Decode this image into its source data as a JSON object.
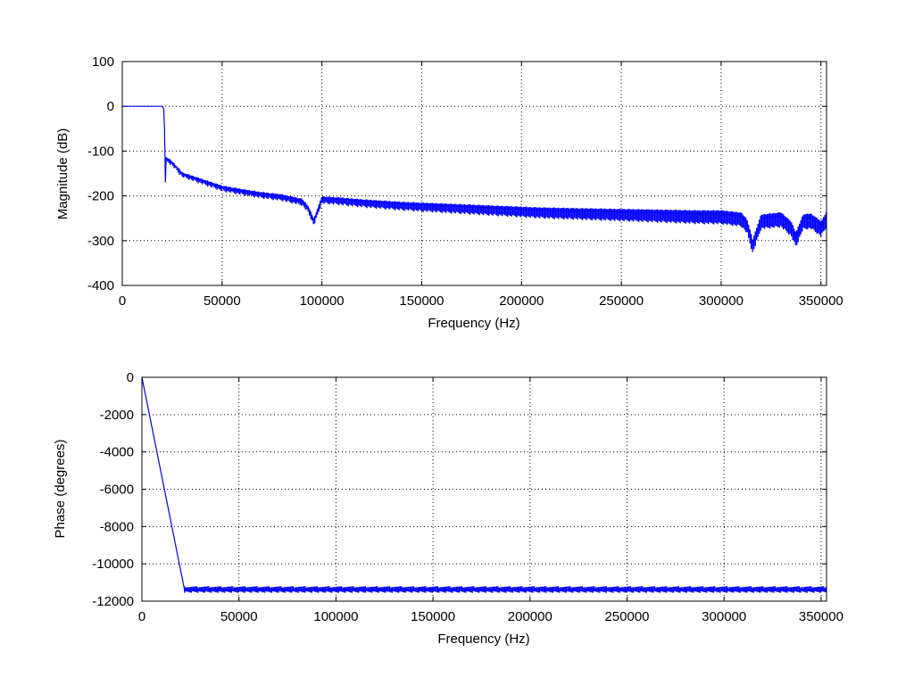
{
  "chart_data": [
    {
      "type": "line",
      "xlabel": "Frequency (Hz)",
      "ylabel": "Magnitude (dB)",
      "xlim": [
        0,
        352800
      ],
      "ylim": [
        -400,
        100
      ],
      "xticks": [
        0,
        50000,
        100000,
        150000,
        200000,
        250000,
        300000,
        350000
      ],
      "yticks": [
        100,
        0,
        -100,
        -200,
        -300,
        -400
      ],
      "grid": true,
      "line_color": "#0000ff",
      "series": [
        {
          "x": [
            0,
            20000,
            20800,
            21200,
            21600,
            22000,
            25000,
            30000,
            40000,
            50000,
            60000,
            70000,
            80000,
            90000,
            93000,
            96000,
            100000,
            110000,
            120000,
            130000,
            140000,
            150000,
            160000,
            170000,
            180000,
            190000,
            200000,
            210000,
            220000,
            230000,
            240000,
            250000,
            260000,
            270000,
            280000,
            290000,
            300000,
            310000,
            313000,
            315800,
            320000,
            330000,
            335000,
            337500,
            341000,
            345000,
            350000,
            352800
          ],
          "y": [
            0,
            0,
            -5,
            -60,
            -170,
            -115,
            -125,
            -150,
            -165,
            -180,
            -188,
            -195,
            -200,
            -210,
            -225,
            -255,
            -205,
            -208,
            -212,
            -215,
            -218,
            -220,
            -222,
            -224,
            -226,
            -228,
            -230,
            -232,
            -233,
            -234,
            -235,
            -236,
            -237,
            -238,
            -239,
            -240,
            -240,
            -245,
            -260,
            -305,
            -250,
            -245,
            -265,
            -290,
            -250,
            -248,
            -265,
            -245
          ]
        }
      ]
    },
    {
      "type": "line",
      "xlabel": "Frequency (Hz)",
      "ylabel": "Phase (degrees)",
      "xlim": [
        0,
        352800
      ],
      "ylim": [
        -12000,
        0
      ],
      "xticks": [
        0,
        50000,
        100000,
        150000,
        200000,
        250000,
        300000,
        350000
      ],
      "yticks": [
        0,
        -2000,
        -4000,
        -6000,
        -8000,
        -10000,
        -12000
      ],
      "grid": true,
      "line_color": "#0000ff",
      "series": [
        {
          "x": [
            0,
            22000,
            352800
          ],
          "y": [
            0,
            -11400,
            -11400
          ],
          "band": [
            -11550,
            -11200
          ]
        }
      ]
    }
  ]
}
